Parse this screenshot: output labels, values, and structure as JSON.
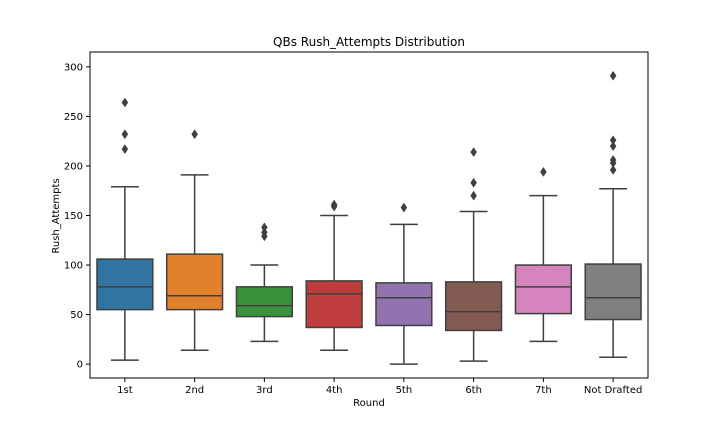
{
  "chart_data": {
    "type": "box",
    "title": "QBs Rush_Attempts Distribution",
    "xlabel": "Round",
    "ylabel": "Rush_Attempts",
    "ylim": [
      -14,
      315
    ],
    "yticks": [
      0,
      50,
      100,
      150,
      200,
      250,
      300
    ],
    "grid": false,
    "categories": [
      "1st",
      "2nd",
      "3rd",
      "4th",
      "5th",
      "6th",
      "7th",
      "Not Drafted"
    ],
    "colors": [
      "#3274a1",
      "#e1812c",
      "#3a923a",
      "#c03d3e",
      "#9372b2",
      "#845b53",
      "#d684bd",
      "#7f7f7f"
    ],
    "boxes": [
      {
        "whislo": 4,
        "q1": 55,
        "med": 78,
        "q3": 106,
        "whishi": 179,
        "fliers": [
          217,
          232,
          264
        ]
      },
      {
        "whislo": 14,
        "q1": 55,
        "med": 69,
        "q3": 111,
        "whishi": 191,
        "fliers": [
          232
        ]
      },
      {
        "whislo": 23,
        "q1": 48,
        "med": 59,
        "q3": 78,
        "whishi": 100,
        "fliers": [
          129,
          133,
          138
        ]
      },
      {
        "whislo": 14,
        "q1": 37,
        "med": 71,
        "q3": 84,
        "whishi": 150,
        "fliers": [
          159,
          161
        ]
      },
      {
        "whislo": 0,
        "q1": 39,
        "med": 67,
        "q3": 82,
        "whishi": 141,
        "fliers": [
          158
        ]
      },
      {
        "whislo": 3,
        "q1": 34,
        "med": 53,
        "q3": 83,
        "whishi": 154,
        "fliers": [
          170,
          183,
          214
        ]
      },
      {
        "whislo": 23,
        "q1": 51,
        "med": 78,
        "q3": 100,
        "whishi": 170,
        "fliers": [
          194
        ]
      },
      {
        "whislo": 7,
        "q1": 45,
        "med": 67,
        "q3": 101,
        "whishi": 177,
        "fliers": [
          196,
          203,
          206,
          220,
          226,
          291
        ]
      }
    ]
  }
}
